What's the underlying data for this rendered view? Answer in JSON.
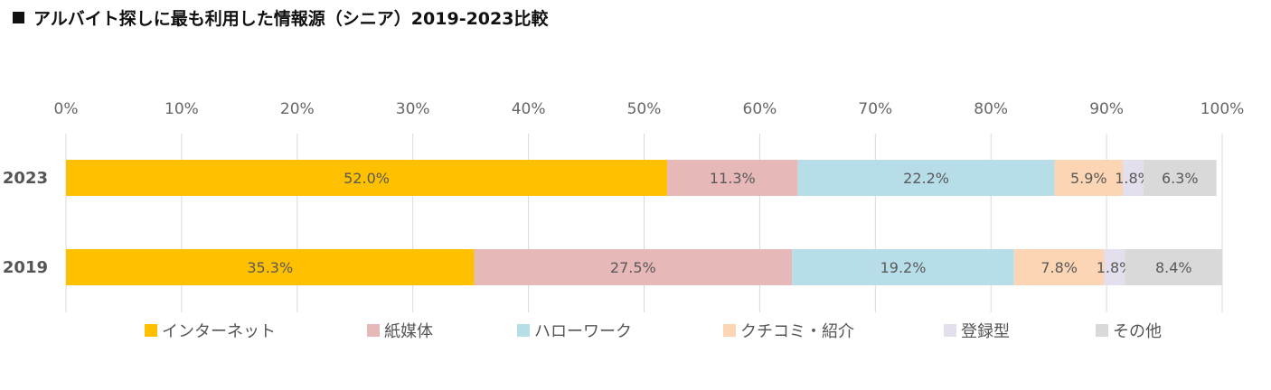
{
  "title": "アルバイト探しに最も利用した情報源（シニア）2019-2023比較",
  "chart_data": {
    "type": "bar",
    "orientation": "horizontal",
    "stacked": true,
    "title": "アルバイト探しに最も利用した情報源（シニア）2019-2023比較",
    "categories": [
      "2023",
      "2019"
    ],
    "x_ticks": [
      "0%",
      "10%",
      "20%",
      "30%",
      "40%",
      "50%",
      "60%",
      "70%",
      "80%",
      "90%",
      "100%"
    ],
    "xlim": [
      0,
      100
    ],
    "grid": true,
    "legend_position": "bottom",
    "series": [
      {
        "name": "インターネット",
        "color": "#FFC000",
        "values": [
          52.0,
          35.3
        ],
        "labels": [
          "52.0%",
          "35.3%"
        ]
      },
      {
        "name": "紙媒体",
        "color": "#E6B8B7",
        "values": [
          11.3,
          27.5
        ],
        "labels": [
          "11.3%",
          "27.5%"
        ]
      },
      {
        "name": "ハローワーク",
        "color": "#B7DEE8",
        "values": [
          22.2,
          19.2
        ],
        "labels": [
          "22.2%",
          "19.2%"
        ]
      },
      {
        "name": "クチコミ・紹介",
        "color": "#FCD5B4",
        "values": [
          5.9,
          7.8
        ],
        "labels": [
          "5.9%",
          "7.8%"
        ]
      },
      {
        "name": "登録型",
        "color": "#E4DFEC",
        "values": [
          1.8,
          1.8
        ],
        "labels": [
          "1.8%",
          "1.8%"
        ]
      },
      {
        "name": "その他",
        "color": "#D9D9D9",
        "values": [
          6.3,
          8.4
        ],
        "labels": [
          "6.3%",
          "8.4%"
        ]
      }
    ]
  }
}
